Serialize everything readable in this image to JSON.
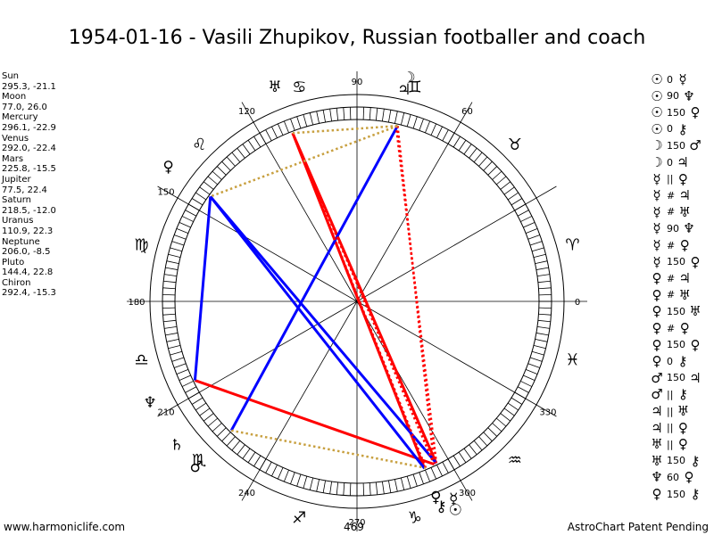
{
  "title": "1954-01-16 - Vasili Zhupikov, Russian footballer and coach",
  "planets": [
    {
      "name": "Sun",
      "coords": "295.3, -21.1",
      "lon": 295.3,
      "glyph": "☉"
    },
    {
      "name": "Moon",
      "coords": "77.0, 26.0",
      "lon": 77.0,
      "glyph": "☽"
    },
    {
      "name": "Mercury",
      "coords": "296.1, -22.9",
      "lon": 296.1,
      "glyph": "☿"
    },
    {
      "name": "Venus",
      "coords": "292.0, -22.4",
      "lon": 292.0,
      "glyph": "♀"
    },
    {
      "name": "Mars",
      "coords": "225.8, -15.5",
      "lon": 225.8,
      "glyph": "♂"
    },
    {
      "name": "Jupiter",
      "coords": "77.5, 22.4",
      "lon": 77.5,
      "glyph": "♃"
    },
    {
      "name": "Saturn",
      "coords": "218.5, -12.0",
      "lon": 218.5,
      "glyph": "♄"
    },
    {
      "name": "Uranus",
      "coords": "110.9, 22.3",
      "lon": 110.9,
      "glyph": "♅"
    },
    {
      "name": "Neptune",
      "coords": "206.0, -8.5",
      "lon": 206.0,
      "glyph": "♆"
    },
    {
      "name": "Pluto",
      "coords": "144.4, 22.8",
      "lon": 144.4,
      "glyph": "♀"
    },
    {
      "name": "Chiron",
      "coords": "292.4, -15.3",
      "lon": 292.4,
      "glyph": "⚷"
    }
  ],
  "aspects": [
    {
      "p1": "☉",
      "asp": "0",
      "p2": "☿"
    },
    {
      "p1": "☉",
      "asp": "90",
      "p2": "♆"
    },
    {
      "p1": "☉",
      "asp": "150",
      "p2": "♀"
    },
    {
      "p1": "☉",
      "asp": "0",
      "p2": "⚷"
    },
    {
      "p1": "☽",
      "asp": "150",
      "p2": "♂"
    },
    {
      "p1": "☽",
      "asp": "0",
      "p2": "♃"
    },
    {
      "p1": "☿",
      "asp": "||",
      "p2": "♀"
    },
    {
      "p1": "☿",
      "asp": "#",
      "p2": "♃"
    },
    {
      "p1": "☿",
      "asp": "#",
      "p2": "♅"
    },
    {
      "p1": "☿",
      "asp": "90",
      "p2": "♆"
    },
    {
      "p1": "☿",
      "asp": "#",
      "p2": "♀"
    },
    {
      "p1": "☿",
      "asp": "150",
      "p2": "♀"
    },
    {
      "p1": "♀",
      "asp": "#",
      "p2": "♃"
    },
    {
      "p1": "♀",
      "asp": "#",
      "p2": "♅"
    },
    {
      "p1": "♀",
      "asp": "150",
      "p2": "♅"
    },
    {
      "p1": "♀",
      "asp": "#",
      "p2": "♀"
    },
    {
      "p1": "♀",
      "asp": "150",
      "p2": "♀"
    },
    {
      "p1": "♀",
      "asp": "0",
      "p2": "⚷"
    },
    {
      "p1": "♂",
      "asp": "150",
      "p2": "♃"
    },
    {
      "p1": "♂",
      "asp": "||",
      "p2": "⚷"
    },
    {
      "p1": "♃",
      "asp": "||",
      "p2": "♅"
    },
    {
      "p1": "♃",
      "asp": "||",
      "p2": "♀"
    },
    {
      "p1": "♅",
      "asp": "||",
      "p2": "♀"
    },
    {
      "p1": "♅",
      "asp": "150",
      "p2": "⚷"
    },
    {
      "p1": "♆",
      "asp": "60",
      "p2": "♀"
    },
    {
      "p1": "♀",
      "asp": "150",
      "p2": "⚷"
    }
  ],
  "degree_labels": [
    {
      "deg": 0,
      "text": "0"
    },
    {
      "deg": 30,
      "text": ""
    },
    {
      "deg": 60,
      "text": "60"
    },
    {
      "deg": 90,
      "text": "90"
    },
    {
      "deg": 120,
      "text": "120"
    },
    {
      "deg": 150,
      "text": "150"
    },
    {
      "deg": 180,
      "text": "180"
    },
    {
      "deg": 210,
      "text": "210"
    },
    {
      "deg": 240,
      "text": "240"
    },
    {
      "deg": 270,
      "text": "270"
    },
    {
      "deg": 300,
      "text": "300"
    },
    {
      "deg": 330,
      "text": "330"
    }
  ],
  "zodiac": [
    {
      "sign": "aries",
      "glyph": "♈",
      "deg": 15
    },
    {
      "sign": "taurus",
      "glyph": "♉",
      "deg": 45
    },
    {
      "sign": "gemini",
      "glyph": "♊",
      "deg": 75
    },
    {
      "sign": "cancer",
      "glyph": "♋",
      "deg": 105
    },
    {
      "sign": "leo",
      "glyph": "♌",
      "deg": 135
    },
    {
      "sign": "virgo",
      "glyph": "♍",
      "deg": 165
    },
    {
      "sign": "libra",
      "glyph": "♎",
      "deg": 195
    },
    {
      "sign": "scorpio",
      "glyph": "♏",
      "deg": 225
    },
    {
      "sign": "sagittarius",
      "glyph": "♐",
      "deg": 255
    },
    {
      "sign": "capricorn",
      "glyph": "♑",
      "deg": 285
    },
    {
      "sign": "aquarius",
      "glyph": "♒",
      "deg": 315
    },
    {
      "sign": "pisces",
      "glyph": "♓",
      "deg": 345
    }
  ],
  "lines": [
    {
      "from": 110.9,
      "to": 296.1,
      "color": "#ff0000",
      "style": "solid"
    },
    {
      "from": 110.9,
      "to": 292.0,
      "color": "#ff0000",
      "style": "solid"
    },
    {
      "from": 206.0,
      "to": 295.3,
      "color": "#ff0000",
      "style": "solid"
    },
    {
      "from": 77.0,
      "to": 225.8,
      "color": "#0000ff",
      "style": "solid"
    },
    {
      "from": 144.4,
      "to": 296.1,
      "color": "#0000ff",
      "style": "solid"
    },
    {
      "from": 144.4,
      "to": 292.0,
      "color": "#0000ff",
      "style": "solid"
    },
    {
      "from": 144.4,
      "to": 206.0,
      "color": "#0000ff",
      "style": "solid"
    },
    {
      "from": 77.0,
      "to": 295.3,
      "color": "#ff0000",
      "style": "dotted"
    },
    {
      "from": 77.5,
      "to": 296.1,
      "color": "#ff0000",
      "style": "dotted"
    },
    {
      "from": 110.9,
      "to": 295.3,
      "color": "#ff0000",
      "style": "dotted"
    },
    {
      "from": 110.9,
      "to": 292.4,
      "color": "#ff0000",
      "style": "dotted"
    },
    {
      "from": 77.0,
      "to": 110.9,
      "color": "#c8a040",
      "style": "dotted"
    },
    {
      "from": 77.0,
      "to": 144.4,
      "color": "#c8a040",
      "style": "dotted"
    },
    {
      "from": 225.8,
      "to": 292.4,
      "color": "#c8a040",
      "style": "dotted"
    }
  ],
  "footer": {
    "left": "www.harmoniclife.com",
    "mid": "469",
    "right": "AstroChart Patent Pending"
  }
}
